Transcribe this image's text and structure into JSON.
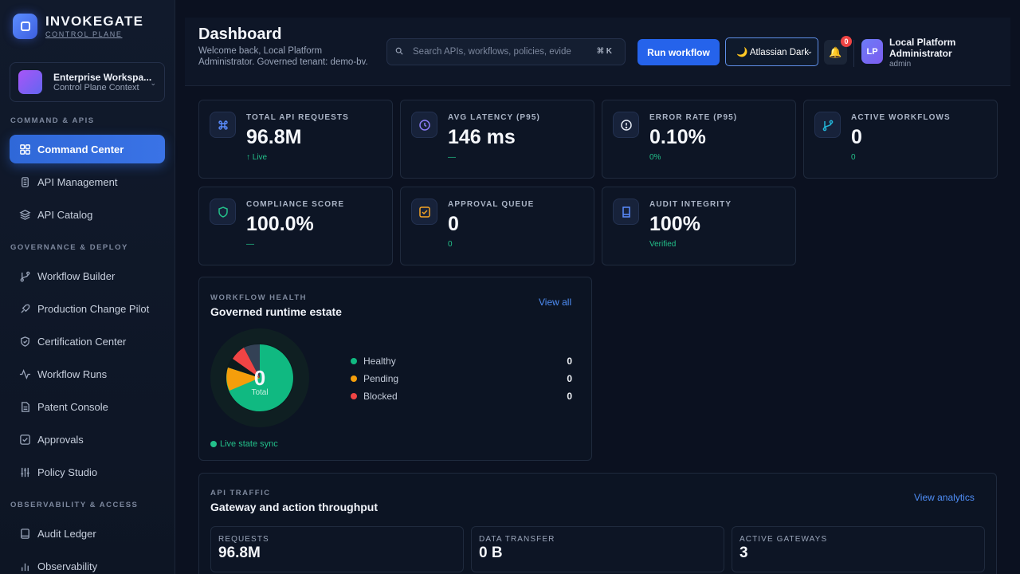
{
  "brand": {
    "name": "INVOKEGATE",
    "subtitle": "CONTROL PLANE"
  },
  "workspace": {
    "name": "Enterprise Workspa...",
    "context": "Control Plane Context"
  },
  "sidebar": {
    "sections": [
      "COMMAND & APIS",
      "GOVERNANCE & DEPLOY",
      "OBSERVABILITY & ACCESS"
    ],
    "items": [
      {
        "label": "Command Center",
        "icon": "grid-icon",
        "active": true
      },
      {
        "label": "API Management",
        "icon": "api-icon"
      },
      {
        "label": "API Catalog",
        "icon": "layers-icon"
      },
      {
        "label": "Workflow Builder",
        "icon": "git-branch-icon"
      },
      {
        "label": "Production Change Pilot",
        "icon": "rocket-icon"
      },
      {
        "label": "Certification Center",
        "icon": "shield-icon"
      },
      {
        "label": "Workflow Runs",
        "icon": "activity-icon"
      },
      {
        "label": "Patent Console",
        "icon": "document-icon"
      },
      {
        "label": "Approvals",
        "icon": "check-square-icon"
      },
      {
        "label": "Policy Studio",
        "icon": "sliders-icon"
      },
      {
        "label": "Audit Ledger",
        "icon": "file-icon"
      },
      {
        "label": "Observability",
        "icon": "bar-chart-icon"
      }
    ]
  },
  "header": {
    "title": "Dashboard",
    "welcome": "Welcome back, Local Platform Administrator. Governed tenant: demo-bv.",
    "search_placeholder": "Search APIs, workflows, policies, evide",
    "search_shortcut": "⌘ K",
    "run_button": "Run workflow",
    "theme": "🌙 Atlassian Dark",
    "notifications": "0",
    "user_initials": "LP",
    "user_name": "Local Platform Administrator",
    "user_role": "admin"
  },
  "stats": [
    {
      "label": "TOTAL API REQUESTS",
      "value": "96.8M",
      "sub": "↑ Live",
      "icon": "command-icon",
      "color": "#5b8dff"
    },
    {
      "label": "AVG LATENCY (P95)",
      "value": "146 ms",
      "sub": "—",
      "icon": "clock-icon",
      "color": "#8b7cf6"
    },
    {
      "label": "ERROR RATE (P95)",
      "value": "0.10%",
      "sub": "0%",
      "icon": "alert-circle-icon",
      "color": "#e6ebf5"
    },
    {
      "label": "ACTIVE WORKFLOWS",
      "value": "0",
      "sub": "0",
      "icon": "git-branch-icon",
      "color": "#22b5d8"
    },
    {
      "label": "COMPLIANCE SCORE",
      "value": "100.0%",
      "sub": "—",
      "icon": "shield-icon",
      "color": "#23c08a"
    },
    {
      "label": "APPROVAL QUEUE",
      "value": "0",
      "sub": "0",
      "icon": "check-square-icon",
      "color": "#f5a524"
    },
    {
      "label": "AUDIT INTEGRITY",
      "value": "100%",
      "sub": "Verified",
      "icon": "book-icon",
      "color": "#5b8dff"
    }
  ],
  "workflow_health": {
    "eyebrow": "WORKFLOW HEALTH",
    "title": "Governed runtime estate",
    "link": "View all",
    "center_value": "0",
    "center_label": "Total",
    "legend": [
      {
        "label": "Healthy",
        "value": "0",
        "color": "#10b981"
      },
      {
        "label": "Pending",
        "value": "0",
        "color": "#f59e0b"
      },
      {
        "label": "Blocked",
        "value": "0",
        "color": "#ef4444"
      }
    ],
    "sync": "Live state sync"
  },
  "api_traffic": {
    "eyebrow": "API TRAFFIC",
    "title": "Gateway and action throughput",
    "link": "View analytics",
    "metrics": [
      {
        "label": "REQUESTS",
        "value": "96.8M"
      },
      {
        "label": "DATA TRANSFER",
        "value": "0 B"
      },
      {
        "label": "ACTIVE GATEWAYS",
        "value": "3"
      }
    ]
  }
}
